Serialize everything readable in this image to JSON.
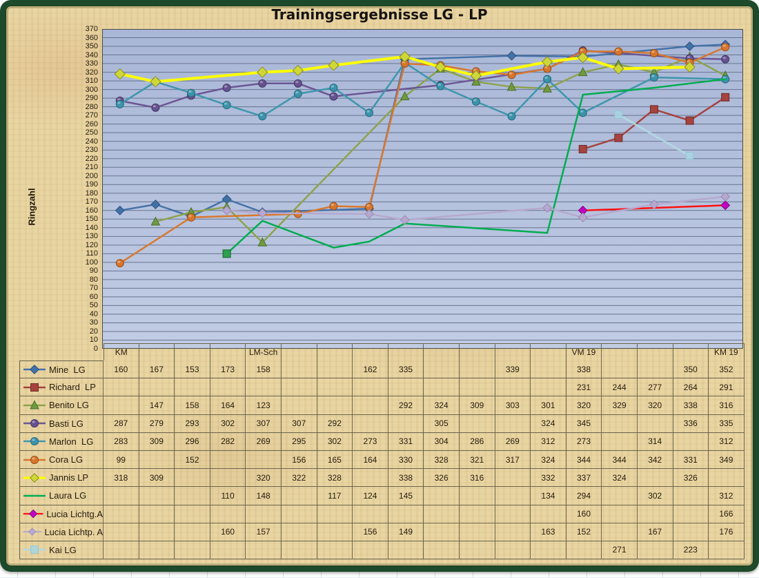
{
  "title": "Trainingsergebnisse  LG - LP",
  "y_axis_label": "Ringzahl",
  "frame_color": "#1d4a2b",
  "parchment_color": "#e9d5a2",
  "chart_data": {
    "type": "line",
    "title": "Trainingsergebnisse  LG - LP",
    "ylabel": "Ringzahl",
    "ylim": [
      0,
      370
    ],
    "ytick_step": 10,
    "grid": "horizontal",
    "legend_position": "table-left",
    "plot_bg_top": "#a9b7d7",
    "plot_bg_bottom": "#c1cce4",
    "gridline_color": "#67748f",
    "plot_border_color": "#4a4a42",
    "categories": [
      "KM",
      "",
      "",
      "",
      "LM-Sch",
      "",
      "",
      "",
      "",
      "",
      "",
      "",
      "",
      "VM 19",
      "",
      "",
      "",
      "KM 19"
    ],
    "series": [
      {
        "name": "Mine  LG",
        "color": "#4572a7",
        "marker": "diamond",
        "marker_fill": "#4271a6",
        "marker_edge": "#2c5282",
        "width": 2.5,
        "values": [
          160,
          167,
          153,
          173,
          158,
          null,
          null,
          162,
          335,
          null,
          null,
          339,
          null,
          338,
          null,
          null,
          350,
          352
        ]
      },
      {
        "name": "Richard  LP",
        "color": "#a5433e",
        "marker": "square",
        "marker_fill": "#a5433e",
        "marker_edge": "#6e2b26",
        "width": 2.5,
        "values": [
          null,
          null,
          null,
          null,
          null,
          null,
          null,
          null,
          null,
          null,
          null,
          null,
          null,
          231,
          244,
          277,
          264,
          291
        ]
      },
      {
        "name": "Benito LG",
        "color": "#8ea24c",
        "marker": "triangle",
        "marker_fill": "#6f9a40",
        "marker_edge": "#49702a",
        "width": 2.5,
        "values": [
          null,
          147,
          158,
          164,
          123,
          null,
          null,
          null,
          292,
          324,
          309,
          303,
          301,
          320,
          329,
          320,
          338,
          316
        ]
      },
      {
        "name": "Basti LG",
        "color": "#6b5694",
        "marker": "circle",
        "marker_fill": "#66528f",
        "marker_edge": "#453567",
        "width": 2.5,
        "values": [
          287,
          279,
          293,
          302,
          307,
          307,
          292,
          null,
          null,
          305,
          null,
          null,
          324,
          345,
          null,
          null,
          336,
          335
        ]
      },
      {
        "name": "Marlon  LG",
        "color": "#3e96ad",
        "marker": "circle",
        "marker_fill": "#3b93aa",
        "marker_edge": "#256b7e",
        "width": 2.5,
        "values": [
          283,
          309,
          296,
          282,
          269,
          295,
          302,
          273,
          331,
          304,
          286,
          269,
          312,
          273,
          null,
          314,
          null,
          312
        ]
      },
      {
        "name": "Cora LG",
        "color": "#d8782e",
        "marker": "circle",
        "marker_fill": "#d6762c",
        "marker_edge": "#9a4f1a",
        "width": 2.5,
        "values": [
          99,
          null,
          152,
          null,
          null,
          156,
          165,
          164,
          330,
          328,
          321,
          317,
          324,
          344,
          344,
          342,
          331,
          349
        ]
      },
      {
        "name": "Jannis LP",
        "color": "#ffff00",
        "marker": "diamond",
        "marker_fill": "#cdd838",
        "marker_edge": "#8b8b25",
        "width": 4,
        "values": [
          318,
          309,
          null,
          null,
          320,
          322,
          328,
          null,
          338,
          326,
          316,
          null,
          332,
          337,
          324,
          null,
          326,
          null
        ]
      },
      {
        "name": "Laura LG",
        "color": "#00ac50",
        "marker": "square",
        "marker_scope": "first",
        "marker_fill": "#2ca04d",
        "marker_edge": "#176130",
        "width": 2.5,
        "values": [
          null,
          null,
          null,
          110,
          148,
          null,
          117,
          124,
          145,
          null,
          null,
          null,
          134,
          294,
          null,
          302,
          null,
          312
        ]
      },
      {
        "name": "Lucia Lichtg.A",
        "color": "#ff1010",
        "marker": "diamond",
        "marker_fill": "#c203c2",
        "marker_edge": "#7d067d",
        "width": 2.5,
        "values": [
          null,
          null,
          null,
          null,
          null,
          null,
          null,
          null,
          null,
          null,
          null,
          null,
          null,
          160,
          null,
          null,
          null,
          166
        ]
      },
      {
        "name": "Lucia Lichtp. A",
        "color": "#b6a8ce",
        "marker": "diamond",
        "marker_fill": "#b6a8ce",
        "marker_edge": "#9a8ab8",
        "width": 2.5,
        "values": [
          null,
          null,
          null,
          160,
          157,
          null,
          null,
          156,
          149,
          null,
          null,
          null,
          163,
          152,
          null,
          167,
          null,
          176
        ]
      },
      {
        "name": "Kai LG",
        "color": "#b3dbe4",
        "marker": "square",
        "marker_fill": "#a9d6e2",
        "marker_edge": "#8fc4d4",
        "width": 3,
        "opacity": 0.85,
        "values": [
          null,
          null,
          null,
          null,
          null,
          null,
          null,
          null,
          null,
          null,
          null,
          null,
          null,
          null,
          271,
          null,
          223,
          null
        ]
      }
    ]
  }
}
